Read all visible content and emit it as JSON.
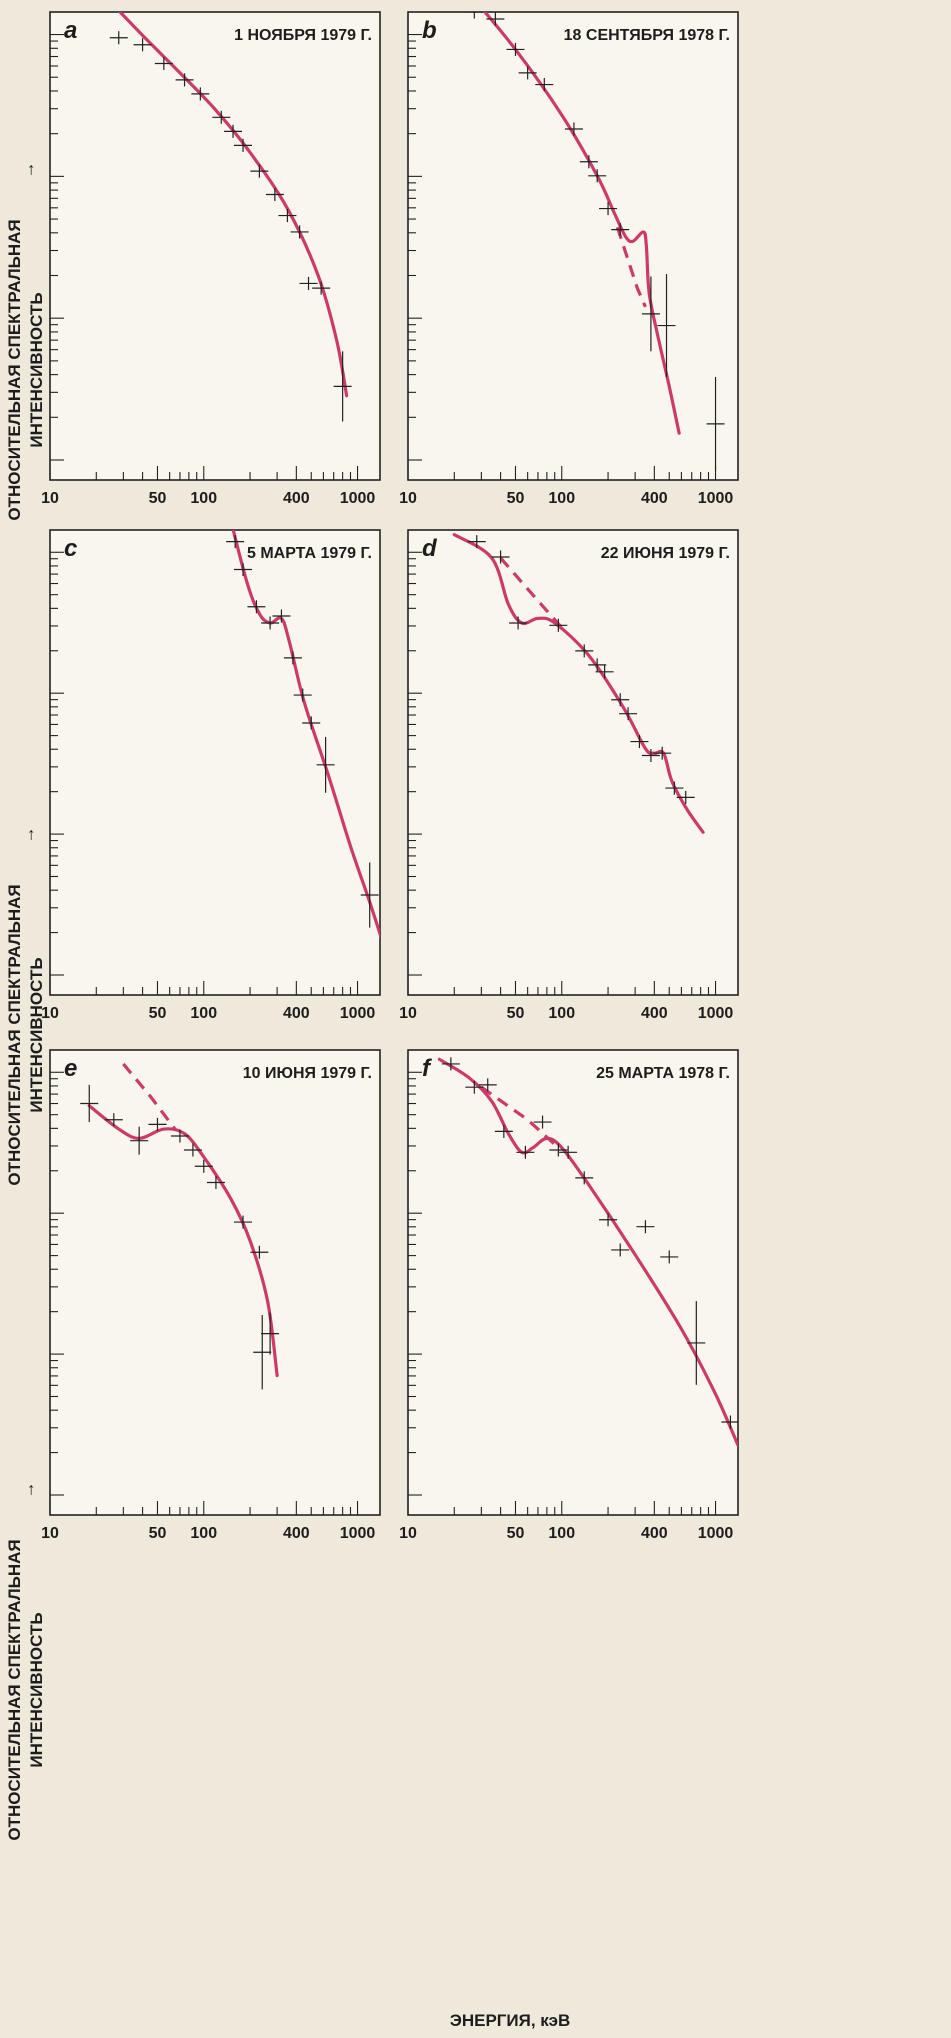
{
  "figure": {
    "ylabel_line1": "ОТНОСИТЕЛЬНАЯ СПЕКТРАЛЬНАЯ",
    "ylabel_line2": "ИНТЕНСИВНОСТЬ",
    "ylabel_arrow": "→",
    "xlabel": "ЭНЕРГИЯ, кэВ",
    "x_tick_labels": [
      "10",
      "50",
      "100",
      "400",
      "1000"
    ],
    "colors": {
      "curve": "#cc3a6a",
      "axes": "#222222",
      "background": "#efe9dc"
    }
  },
  "chart_data": [
    {
      "panel": "a",
      "date": "1 НОЯБРЯ 1979 Г.",
      "type": "scatter",
      "xscale": "log",
      "xlim": [
        10,
        1400
      ],
      "ylim": [
        0,
        1
      ],
      "points": [
        [
          28,
          0.945,
          0.014
        ],
        [
          40,
          0.93,
          0.014
        ],
        [
          55,
          0.89,
          0.014
        ],
        [
          75,
          0.855,
          0.014
        ],
        [
          95,
          0.825,
          0.014
        ],
        [
          130,
          0.775,
          0.014
        ],
        [
          155,
          0.745,
          0.014
        ],
        [
          180,
          0.715,
          0.014
        ],
        [
          230,
          0.66,
          0.014
        ],
        [
          290,
          0.61,
          0.014
        ],
        [
          350,
          0.565,
          0.014
        ],
        [
          420,
          0.53,
          0.014
        ],
        [
          480,
          0.42,
          0.014
        ],
        [
          580,
          0.41,
          0.014
        ],
        [
          800,
          0.2,
          0.075
        ]
      ],
      "fit": [
        [
          25,
          1.02
        ],
        [
          40,
          0.95
        ],
        [
          70,
          0.87
        ],
        [
          120,
          0.79
        ],
        [
          200,
          0.7
        ],
        [
          350,
          0.58
        ],
        [
          550,
          0.44
        ],
        [
          730,
          0.3
        ],
        [
          850,
          0.18
        ]
      ],
      "extrapolation": null
    },
    {
      "panel": "b",
      "date": "18 СЕНТЯБРЯ 1978 Г.",
      "type": "scatter",
      "xscale": "log",
      "xlim": [
        10,
        1400
      ],
      "ylim": [
        0,
        1
      ],
      "points": [
        [
          27,
          1.0,
          0.014
        ],
        [
          37,
          0.985,
          0.014
        ],
        [
          50,
          0.92,
          0.014
        ],
        [
          60,
          0.87,
          0.014
        ],
        [
          77,
          0.845,
          0.014
        ],
        [
          120,
          0.75,
          0.014
        ],
        [
          150,
          0.68,
          0.014
        ],
        [
          170,
          0.65,
          0.014
        ],
        [
          200,
          0.58,
          0.014
        ],
        [
          240,
          0.535,
          0.014
        ],
        [
          380,
          0.355,
          0.08
        ],
        [
          480,
          0.33,
          0.11
        ],
        [
          1000,
          0.12,
          0.1
        ]
      ],
      "fit": [
        [
          25,
          1.04
        ],
        [
          50,
          0.92
        ],
        [
          100,
          0.78
        ],
        [
          170,
          0.65
        ],
        [
          220,
          0.57
        ],
        [
          260,
          0.52
        ],
        [
          290,
          0.51
        ],
        [
          340,
          0.53
        ],
        [
          355,
          0.5
        ],
        [
          370,
          0.4
        ],
        [
          420,
          0.31
        ],
        [
          500,
          0.2
        ],
        [
          580,
          0.1
        ]
      ],
      "extrapolation": [
        [
          230,
          0.54
        ],
        [
          270,
          0.47
        ],
        [
          310,
          0.41
        ],
        [
          350,
          0.37
        ]
      ]
    },
    {
      "panel": "c",
      "date": "5 МАРТА 1979 Г.",
      "type": "scatter",
      "xscale": "log",
      "xlim": [
        10,
        1400
      ],
      "ylim": [
        0,
        1
      ],
      "points": [
        [
          160,
          0.975,
          0.014
        ],
        [
          180,
          0.915,
          0.014
        ],
        [
          220,
          0.835,
          0.014
        ],
        [
          270,
          0.8,
          0.014
        ],
        [
          320,
          0.815,
          0.014
        ],
        [
          380,
          0.725,
          0.014
        ],
        [
          440,
          0.645,
          0.014
        ],
        [
          500,
          0.585,
          0.014
        ],
        [
          620,
          0.495,
          0.06
        ],
        [
          1200,
          0.215,
          0.07
        ]
      ],
      "fit": [
        [
          140,
          1.06
        ],
        [
          190,
          0.89
        ],
        [
          230,
          0.82
        ],
        [
          270,
          0.8
        ],
        [
          320,
          0.81
        ],
        [
          360,
          0.76
        ],
        [
          450,
          0.63
        ],
        [
          650,
          0.47
        ],
        [
          900,
          0.32
        ],
        [
          1200,
          0.2
        ],
        [
          1500,
          0.1
        ]
      ],
      "extrapolation": null
    },
    {
      "panel": "d",
      "date": "22 ИЮНЯ 1979 Г.",
      "type": "scatter",
      "xscale": "log",
      "xlim": [
        10,
        1400
      ],
      "ylim": [
        0,
        1
      ],
      "points": [
        [
          28,
          0.975,
          0.014
        ],
        [
          40,
          0.942,
          0.014
        ],
        [
          52,
          0.8,
          0.014
        ],
        [
          95,
          0.795,
          0.014
        ],
        [
          140,
          0.74,
          0.014
        ],
        [
          170,
          0.71,
          0.014
        ],
        [
          190,
          0.695,
          0.014
        ],
        [
          240,
          0.635,
          0.014
        ],
        [
          270,
          0.605,
          0.014
        ],
        [
          320,
          0.545,
          0.014
        ],
        [
          380,
          0.515,
          0.014
        ],
        [
          450,
          0.52,
          0.014
        ],
        [
          540,
          0.445,
          0.014
        ],
        [
          640,
          0.425,
          0.014
        ]
      ],
      "fit": [
        [
          20,
          0.99
        ],
        [
          35,
          0.94
        ],
        [
          45,
          0.84
        ],
        [
          55,
          0.8
        ],
        [
          70,
          0.81
        ],
        [
          90,
          0.8
        ],
        [
          150,
          0.73
        ],
        [
          250,
          0.62
        ],
        [
          350,
          0.53
        ],
        [
          400,
          0.52
        ],
        [
          460,
          0.52
        ],
        [
          520,
          0.46
        ],
        [
          650,
          0.4
        ],
        [
          830,
          0.35
        ]
      ],
      "extrapolation": [
        [
          40,
          0.94
        ],
        [
          65,
          0.86
        ],
        [
          100,
          0.79
        ]
      ]
    },
    {
      "panel": "e",
      "date": "10 ИЮНЯ 1979 Г.",
      "type": "scatter",
      "xscale": "log",
      "xlim": [
        10,
        1400
      ],
      "ylim": [
        0,
        1
      ],
      "points": [
        [
          18,
          0.885,
          0.04
        ],
        [
          26,
          0.85,
          0.014
        ],
        [
          38,
          0.805,
          0.03
        ],
        [
          50,
          0.84,
          0.014
        ],
        [
          70,
          0.815,
          0.014
        ],
        [
          85,
          0.785,
          0.014
        ],
        [
          100,
          0.75,
          0.014
        ],
        [
          120,
          0.715,
          0.014
        ],
        [
          180,
          0.63,
          0.014
        ],
        [
          230,
          0.565,
          0.014
        ],
        [
          240,
          0.35,
          0.08
        ],
        [
          270,
          0.39,
          0.045
        ]
      ],
      "fit": [
        [
          18,
          0.88
        ],
        [
          28,
          0.83
        ],
        [
          38,
          0.81
        ],
        [
          55,
          0.83
        ],
        [
          75,
          0.82
        ],
        [
          100,
          0.77
        ],
        [
          150,
          0.68
        ],
        [
          200,
          0.59
        ],
        [
          260,
          0.46
        ],
        [
          300,
          0.3
        ]
      ],
      "extrapolation": [
        [
          30,
          0.97
        ],
        [
          45,
          0.9
        ],
        [
          65,
          0.83
        ]
      ]
    },
    {
      "panel": "f",
      "date": "25 МАРТА 1978 Г.",
      "type": "scatter",
      "xscale": "log",
      "xlim": [
        10,
        1400
      ],
      "ylim": [
        0,
        1
      ],
      "points": [
        [
          19,
          0.97,
          0.014
        ],
        [
          27,
          0.92,
          0.014
        ],
        [
          33,
          0.925,
          0.014
        ],
        [
          42,
          0.825,
          0.014
        ],
        [
          58,
          0.78,
          0.014
        ],
        [
          75,
          0.845,
          0.014
        ],
        [
          95,
          0.785,
          0.014
        ],
        [
          110,
          0.78,
          0.014
        ],
        [
          140,
          0.725,
          0.014
        ],
        [
          200,
          0.635,
          0.014
        ],
        [
          240,
          0.57,
          0.014
        ],
        [
          350,
          0.62,
          0.014
        ],
        [
          500,
          0.555,
          0.014
        ],
        [
          750,
          0.37,
          0.09
        ],
        [
          1250,
          0.2,
          0.014
        ]
      ],
      "fit": [
        [
          16,
          0.98
        ],
        [
          25,
          0.94
        ],
        [
          35,
          0.89
        ],
        [
          45,
          0.82
        ],
        [
          55,
          0.78
        ],
        [
          65,
          0.79
        ],
        [
          80,
          0.81
        ],
        [
          100,
          0.79
        ],
        [
          150,
          0.71
        ],
        [
          300,
          0.56
        ],
        [
          600,
          0.4
        ],
        [
          1000,
          0.26
        ],
        [
          1400,
          0.15
        ]
      ],
      "extrapolation": [
        [
          30,
          0.92
        ],
        [
          60,
          0.85
        ],
        [
          95,
          0.79
        ]
      ]
    }
  ]
}
